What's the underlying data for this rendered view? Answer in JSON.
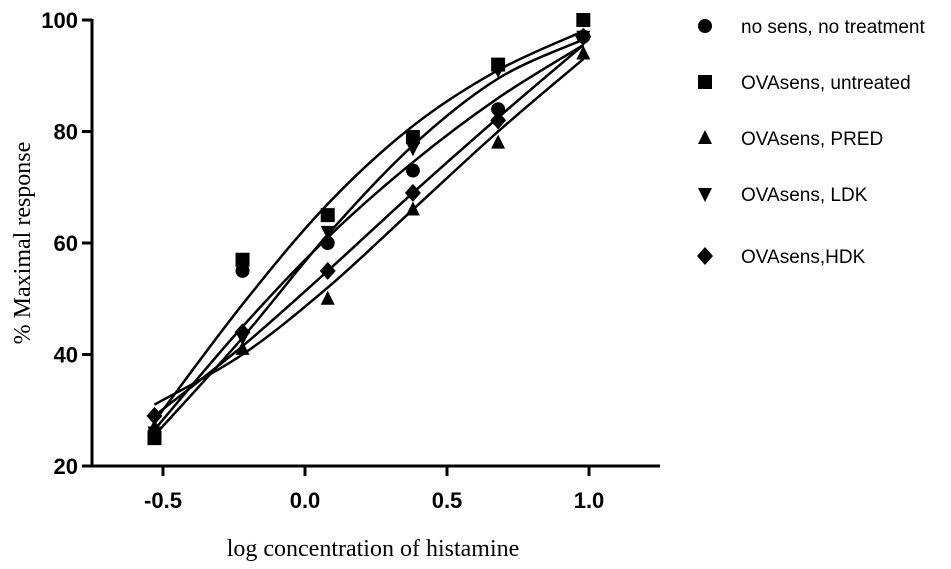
{
  "chart_data": {
    "type": "scatter",
    "title": "",
    "xlabel": "log concentration of histamine",
    "ylabel": "% Maximal response",
    "xlim": [
      -0.75,
      1.25
    ],
    "ylim": [
      20,
      100
    ],
    "xticks": [
      -0.5,
      0.0,
      0.5,
      1.0
    ],
    "xtick_labels": [
      "-0.5",
      "0.0",
      "0.5",
      "1.0"
    ],
    "yticks": [
      20,
      40,
      60,
      80,
      100
    ],
    "ytick_labels": [
      "20",
      "40",
      "60",
      "80",
      "100"
    ],
    "grid": false,
    "legend_position": "right",
    "x": [
      -0.53,
      -0.22,
      0.08,
      0.38,
      0.68,
      0.98
    ],
    "series": [
      {
        "name": "no sens, no treatment",
        "marker": "circle",
        "values": [
          26,
          55,
          60,
          73,
          84,
          97
        ]
      },
      {
        "name": "OVAsens, untreated",
        "marker": "square",
        "values": [
          25,
          57,
          65,
          79,
          92,
          100
        ]
      },
      {
        "name": "OVAsens, PRED",
        "marker": "triangle-up",
        "values": [
          27,
          41,
          50,
          66,
          78,
          94
        ]
      },
      {
        "name": "OVAsens, LDK",
        "marker": "triangle-down",
        "values": [
          26,
          43,
          62,
          77,
          91,
          97
        ]
      },
      {
        "name": "OVAsens,HDK",
        "marker": "diamond",
        "values": [
          29,
          44,
          55,
          69,
          82,
          97
        ]
      }
    ],
    "fit_curves": [
      {
        "series": "no sens, no treatment",
        "values": [
          26.5,
          45.0,
          61.0,
          74.5,
          86.0,
          95.5
        ]
      },
      {
        "series": "OVAsens, untreated",
        "values": [
          28.0,
          49.0,
          67.0,
          81.0,
          91.0,
          98.0
        ]
      },
      {
        "series": "OVAsens, PRED",
        "values": [
          31.0,
          40.0,
          52.0,
          66.0,
          80.0,
          93.0
        ]
      },
      {
        "series": "OVAsens, LDK",
        "values": [
          25.5,
          43.0,
          61.5,
          77.5,
          89.5,
          96.5
        ]
      },
      {
        "series": "OVAsens,HDK",
        "values": [
          29.0,
          41.5,
          55.0,
          69.0,
          82.5,
          95.5
        ]
      }
    ]
  }
}
